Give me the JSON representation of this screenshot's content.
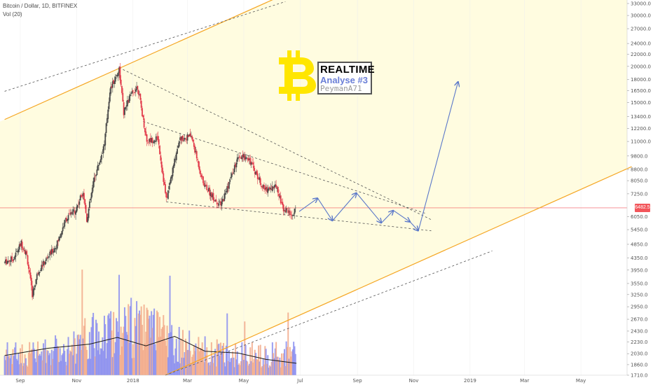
{
  "header": {
    "title": "Bitcoin / Dollar, 1D, BITFINEX",
    "volume": "Vol (20)"
  },
  "annotation": {
    "line1": "REALTIME",
    "line2": "Analyse #3",
    "line3": "PeymanA71",
    "logo_glyph": "B",
    "logo_color": "#ffe600"
  },
  "last_price": "6482.5",
  "colors": {
    "up": "#4a4a4a",
    "down": "#e23b4b",
    "channel": "#f5a623",
    "channel_fill": "#fffce0",
    "dashed": "#555555",
    "arrows": "#5b78c9",
    "vol_up": "#8a8df0",
    "vol_down": "#f2a98a",
    "vol_ma": "#1a1a1a",
    "last_price_line": "#f2555a"
  },
  "chart_data": {
    "type": "candlestick",
    "x_ticks": [
      "Sep",
      "Nov",
      "2018",
      "Mar",
      "May",
      "Jul",
      "Sep",
      "Nov",
      "2019",
      "Mar",
      "May"
    ],
    "y_ticks": [
      "33000.0",
      "30000.0",
      "27000.0",
      "24000.0",
      "22000.0",
      "20000.0",
      "18000.0",
      "16500.0",
      "15000.0",
      "13400.0",
      "12200.0",
      "11000.0",
      "9800.0",
      "8800.0",
      "8050.0",
      "7250.0",
      "6050.0",
      "5450.0",
      "4850.0",
      "4350.0",
      "3950.0",
      "3550.0",
      "3250.0",
      "2950.0",
      "2670.0",
      "2430.0",
      "2230.0",
      "2030.0",
      "1860.0",
      "1710.0"
    ],
    "y_scale": "log",
    "ylim": [
      1710,
      33000
    ],
    "last_price": 6482.5,
    "price_path": [
      [
        "2017-08-15",
        4200
      ],
      [
        "2017-08-25",
        4350
      ],
      [
        "2017-09-02",
        4900
      ],
      [
        "2017-09-08",
        4450
      ],
      [
        "2017-09-14",
        3250
      ],
      [
        "2017-09-20",
        3900
      ],
      [
        "2017-09-29",
        4300
      ],
      [
        "2017-10-10",
        4800
      ],
      [
        "2017-10-20",
        5900
      ],
      [
        "2017-10-31",
        6400
      ],
      [
        "2017-11-08",
        7400
      ],
      [
        "2017-11-12",
        5900
      ],
      [
        "2017-11-20",
        8200
      ],
      [
        "2017-11-26",
        9400
      ],
      [
        "2017-12-01",
        10800
      ],
      [
        "2017-12-07",
        16500
      ],
      [
        "2017-12-17",
        19600
      ],
      [
        "2017-12-22",
        13800
      ],
      [
        "2017-12-28",
        15600
      ],
      [
        "2018-01-06",
        17100
      ],
      [
        "2018-01-16",
        11000
      ],
      [
        "2018-01-28",
        11300
      ],
      [
        "2018-02-06",
        6900
      ],
      [
        "2018-02-20",
        11200
      ],
      [
        "2018-03-05",
        11500
      ],
      [
        "2018-03-18",
        7900
      ],
      [
        "2018-03-31",
        6900
      ],
      [
        "2018-04-06",
        6600
      ],
      [
        "2018-04-24",
        9500
      ],
      [
        "2018-05-05",
        9800
      ],
      [
        "2018-05-23",
        7500
      ],
      [
        "2018-06-06",
        7700
      ],
      [
        "2018-06-12",
        6500
      ],
      [
        "2018-06-23",
        6100
      ],
      [
        "2018-06-27",
        6482.5
      ]
    ],
    "volume_ma_path": [
      [
        "2017-08-15",
        2000
      ],
      [
        "2017-10-01",
        2120
      ],
      [
        "2017-11-15",
        2190
      ],
      [
        "2017-12-15",
        2310
      ],
      [
        "2018-01-15",
        2160
      ],
      [
        "2018-02-15",
        2330
      ],
      [
        "2018-03-20",
        2070
      ],
      [
        "2018-04-25",
        2040
      ],
      [
        "2018-05-25",
        1940
      ],
      [
        "2018-06-27",
        1880
      ]
    ],
    "channel_upper": [
      [
        "2017-08-15",
        13100
      ],
      [
        "2018-06-10",
        35000
      ]
    ],
    "channel_lower": [
      [
        "2018-02-05",
        1710
      ],
      [
        "2019-06-25",
        9000
      ]
    ],
    "dashed_lines": [
      {
        "name": "outer-upper",
        "points": [
          [
            "2017-08-15",
            16400
          ],
          [
            "2018-06-15",
            33500
          ]
        ]
      },
      {
        "name": "outer-lower",
        "points": [
          [
            "2018-02-05",
            1710
          ],
          [
            "2019-01-25",
            4600
          ]
        ]
      },
      {
        "name": "wedge-top",
        "points": [
          [
            "2017-12-17",
            19800
          ],
          [
            "2018-11-20",
            5900
          ]
        ]
      },
      {
        "name": "wedge-mid",
        "points": [
          [
            "2018-01-12",
            12900
          ],
          [
            "2018-11-14",
            6200
          ]
        ]
      },
      {
        "name": "wedge-bottom",
        "points": [
          [
            "2018-02-06",
            6800
          ],
          [
            "2018-11-20",
            5400
          ]
        ]
      }
    ],
    "projection_path": [
      [
        "2018-06-30",
        6300
      ],
      [
        "2018-07-20",
        7000
      ],
      [
        "2018-08-05",
        5850
      ],
      [
        "2018-08-31",
        7300
      ],
      [
        "2018-09-27",
        5750
      ],
      [
        "2018-10-10",
        6350
      ],
      [
        "2018-10-28",
        5800
      ],
      [
        "2018-11-06",
        5400
      ],
      [
        "2018-12-19",
        17700
      ]
    ]
  }
}
